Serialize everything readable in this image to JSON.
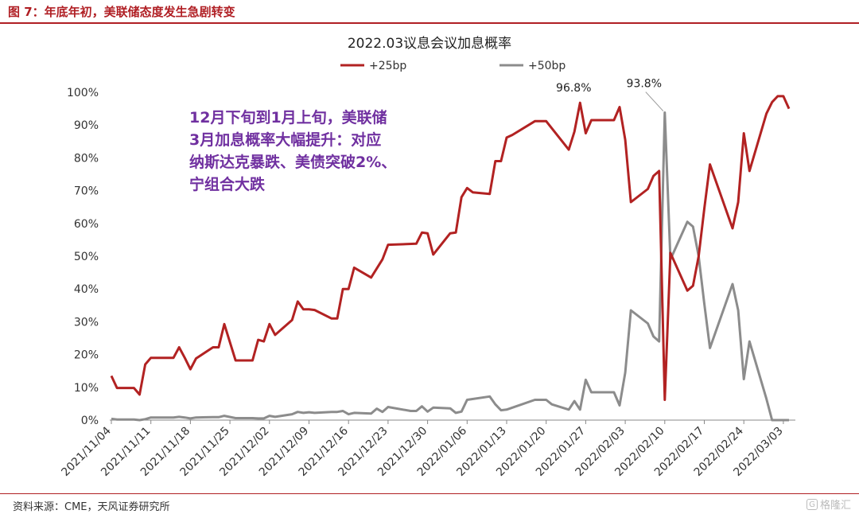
{
  "figure": {
    "title": "图 7：年底年初，美联储态度发生急剧转变",
    "source": "资料来源：CME，天风证券研究所",
    "watermark": "格隆汇"
  },
  "colors": {
    "accent": "#b01f24",
    "series_25bp": "#b22222",
    "series_50bp": "#8c8c8c",
    "annotation": "#7030a0"
  },
  "chart_data": {
    "type": "line",
    "title": "2022.03议息会议加息概率",
    "xlabel": "",
    "ylabel": "",
    "ylim": [
      0,
      100
    ],
    "y_ticks": [
      "0%",
      "10%",
      "20%",
      "30%",
      "40%",
      "50%",
      "60%",
      "70%",
      "80%",
      "90%",
      "100%"
    ],
    "x_ticks": [
      "2021/11/04",
      "2021/11/11",
      "2021/11/18",
      "2021/11/25",
      "2021/12/02",
      "2021/12/09",
      "2021/12/16",
      "2021/12/23",
      "2021/12/30",
      "2022/01/06",
      "2022/01/13",
      "2022/01/20",
      "2022/01/27",
      "2022/02/03",
      "2022/02/10",
      "2022/02/17",
      "2022/02/24",
      "2022/03/03"
    ],
    "x_range": [
      "2021/11/04",
      "2022/03/04"
    ],
    "legend": {
      "position": "top"
    },
    "grid": false,
    "series": [
      {
        "name": "+25bp",
        "points": [
          [
            "2021/11/04",
            13.5
          ],
          [
            "2021/11/05",
            9.8
          ],
          [
            "2021/11/08",
            9.8
          ],
          [
            "2021/11/09",
            7.8
          ],
          [
            "2021/11/10",
            17.0
          ],
          [
            "2021/11/11",
            19.0
          ],
          [
            "2021/11/15",
            19.0
          ],
          [
            "2021/11/16",
            22.2
          ],
          [
            "2021/11/17",
            19.0
          ],
          [
            "2021/11/18",
            15.5
          ],
          [
            "2021/11/19",
            18.8
          ],
          [
            "2021/11/22",
            22.2
          ],
          [
            "2021/11/23",
            22.2
          ],
          [
            "2021/11/24",
            29.3
          ],
          [
            "2021/11/26",
            18.2
          ],
          [
            "2021/11/29",
            18.2
          ],
          [
            "2021/11/30",
            24.5
          ],
          [
            "2021/12/01",
            24.0
          ],
          [
            "2021/12/02",
            29.3
          ],
          [
            "2021/12/03",
            26.0
          ],
          [
            "2021/12/06",
            30.5
          ],
          [
            "2021/12/07",
            36.2
          ],
          [
            "2021/12/08",
            33.8
          ],
          [
            "2021/12/09",
            33.8
          ],
          [
            "2021/12/10",
            33.6
          ],
          [
            "2021/12/13",
            31.0
          ],
          [
            "2021/12/14",
            31.0
          ],
          [
            "2021/12/15",
            40.0
          ],
          [
            "2021/12/16",
            40.0
          ],
          [
            "2021/12/17",
            46.5
          ],
          [
            "2021/12/20",
            43.5
          ],
          [
            "2021/12/22",
            49.0
          ],
          [
            "2021/12/23",
            53.5
          ],
          [
            "2021/12/28",
            53.8
          ],
          [
            "2021/12/29",
            57.2
          ],
          [
            "2021/12/30",
            57.0
          ],
          [
            "2021/12/31",
            50.5
          ],
          [
            "2022/01/03",
            57.0
          ],
          [
            "2022/01/04",
            57.2
          ],
          [
            "2022/01/05",
            68.0
          ],
          [
            "2022/01/06",
            70.8
          ],
          [
            "2022/01/07",
            69.5
          ],
          [
            "2022/01/10",
            69.0
          ],
          [
            "2022/01/11",
            79.0
          ],
          [
            "2022/01/12",
            79.0
          ],
          [
            "2022/01/13",
            86.2
          ],
          [
            "2022/01/14",
            87.0
          ],
          [
            "2022/01/18",
            91.2
          ],
          [
            "2022/01/20",
            91.2
          ],
          [
            "2022/01/24",
            82.5
          ],
          [
            "2022/01/25",
            88.0
          ],
          [
            "2022/01/26",
            96.8
          ],
          [
            "2022/01/27",
            87.5
          ],
          [
            "2022/01/28",
            91.5
          ],
          [
            "2022/01/31",
            91.5
          ],
          [
            "2022/02/01",
            91.5
          ],
          [
            "2022/02/02",
            95.5
          ],
          [
            "2022/02/03",
            85.5
          ],
          [
            "2022/02/04",
            66.5
          ],
          [
            "2022/02/07",
            70.5
          ],
          [
            "2022/02/08",
            74.5
          ],
          [
            "2022/02/09",
            76.0
          ],
          [
            "2022/02/10",
            6.2
          ],
          [
            "2022/02/11",
            51.0
          ],
          [
            "2022/02/14",
            39.5
          ],
          [
            "2022/02/15",
            41.0
          ],
          [
            "2022/02/16",
            50.0
          ],
          [
            "2022/02/17",
            64.5
          ],
          [
            "2022/02/18",
            78.0
          ],
          [
            "2022/02/22",
            58.5
          ],
          [
            "2022/02/23",
            66.5
          ],
          [
            "2022/02/24",
            87.5
          ],
          [
            "2022/02/25",
            76.0
          ],
          [
            "2022/02/28",
            93.5
          ],
          [
            "2022/03/01",
            97.0
          ],
          [
            "2022/03/02",
            98.8
          ],
          [
            "2022/03/03",
            98.8
          ],
          [
            "2022/03/04",
            95.0
          ]
        ]
      },
      {
        "name": "+50bp",
        "points": [
          [
            "2021/11/04",
            0.4
          ],
          [
            "2021/11/05",
            0.2
          ],
          [
            "2021/11/08",
            0.2
          ],
          [
            "2021/11/09",
            0.0
          ],
          [
            "2021/11/10",
            0.3
          ],
          [
            "2021/11/11",
            0.8
          ],
          [
            "2021/11/15",
            0.8
          ],
          [
            "2021/11/16",
            1.0
          ],
          [
            "2021/11/17",
            0.8
          ],
          [
            "2021/11/18",
            0.5
          ],
          [
            "2021/11/19",
            0.8
          ],
          [
            "2021/11/22",
            0.9
          ],
          [
            "2021/11/23",
            0.9
          ],
          [
            "2021/11/24",
            1.3
          ],
          [
            "2021/11/26",
            0.6
          ],
          [
            "2021/11/29",
            0.6
          ],
          [
            "2021/11/30",
            0.5
          ],
          [
            "2021/12/01",
            0.5
          ],
          [
            "2021/12/02",
            1.3
          ],
          [
            "2021/12/03",
            1.0
          ],
          [
            "2021/12/06",
            1.8
          ],
          [
            "2021/12/07",
            2.5
          ],
          [
            "2021/12/08",
            2.2
          ],
          [
            "2021/12/09",
            2.4
          ],
          [
            "2021/12/10",
            2.2
          ],
          [
            "2021/12/13",
            2.5
          ],
          [
            "2021/12/14",
            2.5
          ],
          [
            "2021/12/15",
            2.8
          ],
          [
            "2021/12/16",
            1.8
          ],
          [
            "2021/12/17",
            2.2
          ],
          [
            "2021/12/20",
            2.0
          ],
          [
            "2021/12/21",
            3.5
          ],
          [
            "2021/12/22",
            2.5
          ],
          [
            "2021/12/23",
            4.0
          ],
          [
            "2021/12/27",
            2.8
          ],
          [
            "2021/12/28",
            2.8
          ],
          [
            "2021/12/29",
            4.2
          ],
          [
            "2021/12/30",
            2.6
          ],
          [
            "2021/12/31",
            3.8
          ],
          [
            "2022/01/03",
            3.6
          ],
          [
            "2022/01/04",
            2.2
          ],
          [
            "2022/01/05",
            2.6
          ],
          [
            "2022/01/06",
            6.2
          ],
          [
            "2022/01/10",
            7.2
          ],
          [
            "2022/01/11",
            4.8
          ],
          [
            "2022/01/12",
            3.0
          ],
          [
            "2022/01/13",
            3.2
          ],
          [
            "2022/01/18",
            6.2
          ],
          [
            "2022/01/20",
            6.2
          ],
          [
            "2022/01/21",
            4.8
          ],
          [
            "2022/01/24",
            3.2
          ],
          [
            "2022/01/25",
            5.8
          ],
          [
            "2022/01/26",
            3.2
          ],
          [
            "2022/01/27",
            12.3
          ],
          [
            "2022/01/28",
            8.5
          ],
          [
            "2022/02/01",
            8.5
          ],
          [
            "2022/02/02",
            4.5
          ],
          [
            "2022/02/03",
            14.5
          ],
          [
            "2022/02/04",
            33.5
          ],
          [
            "2022/02/07",
            29.5
          ],
          [
            "2022/02/08",
            25.5
          ],
          [
            "2022/02/09",
            24.0
          ],
          [
            "2022/02/10",
            93.8
          ],
          [
            "2022/02/11",
            49.0
          ],
          [
            "2022/02/14",
            60.5
          ],
          [
            "2022/02/15",
            59.0
          ],
          [
            "2022/02/16",
            50.0
          ],
          [
            "2022/02/17",
            35.5
          ],
          [
            "2022/02/18",
            22.0
          ],
          [
            "2022/02/22",
            41.5
          ],
          [
            "2022/02/23",
            33.5
          ],
          [
            "2022/02/24",
            12.5
          ],
          [
            "2022/02/25",
            24.0
          ],
          [
            "2022/02/28",
            6.5
          ],
          [
            "2022/03/01",
            0.0
          ],
          [
            "2022/03/02",
            0.0
          ],
          [
            "2022/03/03",
            0.0
          ],
          [
            "2022/03/04",
            0.0
          ]
        ]
      }
    ],
    "annotations": [
      {
        "text": "96.8%",
        "series": "+25bp",
        "date": "2022/01/26",
        "value": 96.8
      },
      {
        "text": "93.8%",
        "series": "+50bp",
        "date": "2022/02/10",
        "value": 93.8
      },
      {
        "text": "12月下旬到1月上旬，美联储3月加息概率大幅提升：对应纳斯达克暴跌、美债突破2%、宁组合大跌",
        "lines": [
          "12月下旬到1月上旬，美联储",
          "3月加息概率大幅提升：对应",
          "纳斯达克暴跌、美债突破2%、",
          "宁组合大跌"
        ]
      }
    ]
  }
}
